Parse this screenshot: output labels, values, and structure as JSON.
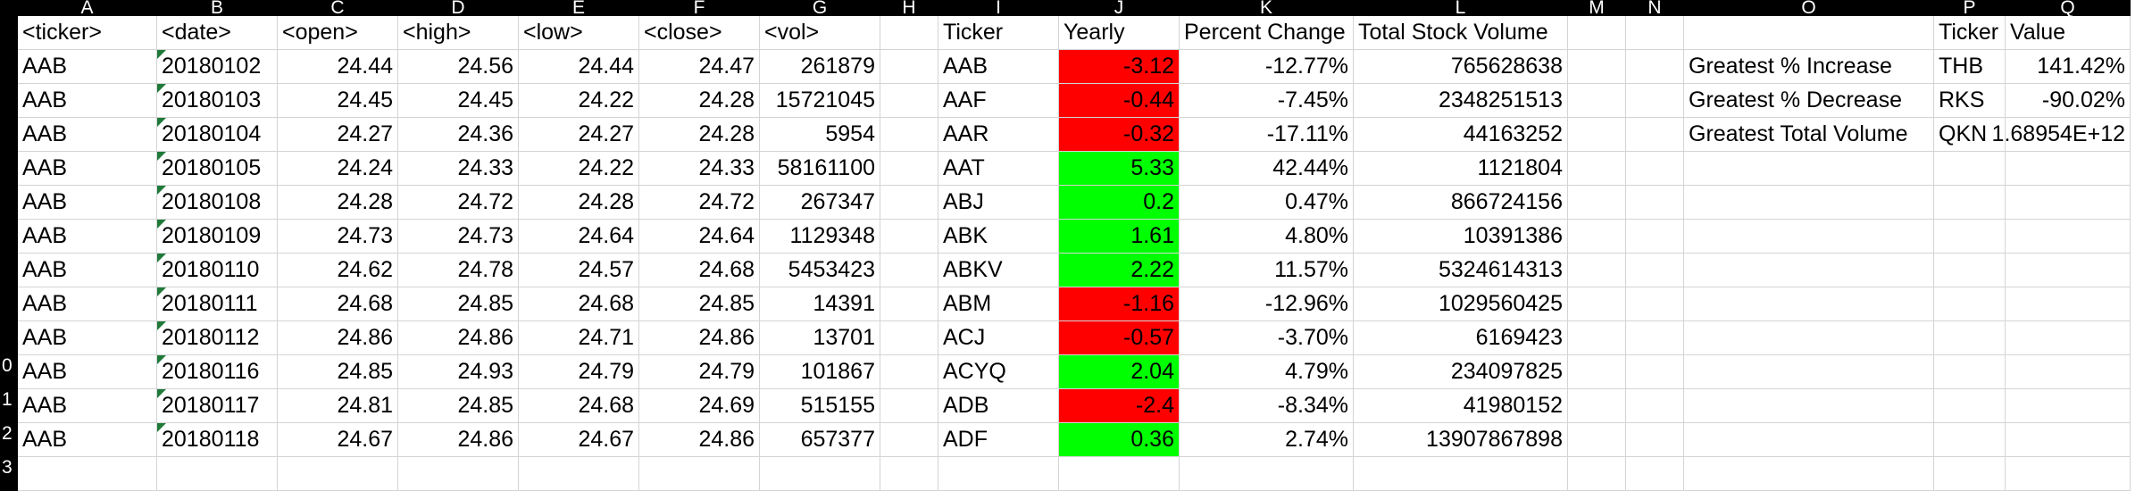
{
  "columns": [
    {
      "letter": "A"
    },
    {
      "letter": "B"
    },
    {
      "letter": "C"
    },
    {
      "letter": "D"
    },
    {
      "letter": "E"
    },
    {
      "letter": "F"
    },
    {
      "letter": "G"
    },
    {
      "letter": "H"
    },
    {
      "letter": "I"
    },
    {
      "letter": "J"
    },
    {
      "letter": "K"
    },
    {
      "letter": "L"
    },
    {
      "letter": "M"
    },
    {
      "letter": "N"
    },
    {
      "letter": "O"
    },
    {
      "letter": "P"
    },
    {
      "letter": "Q"
    }
  ],
  "rows": [
    {
      "num": ""
    },
    {
      "num": ""
    },
    {
      "num": ""
    },
    {
      "num": ""
    },
    {
      "num": ""
    },
    {
      "num": ""
    },
    {
      "num": ""
    },
    {
      "num": ""
    },
    {
      "num": ""
    },
    {
      "num": ""
    },
    {
      "num": "0"
    },
    {
      "num": "1"
    },
    {
      "num": "2"
    },
    {
      "num": "3"
    }
  ],
  "colors": {
    "positive": "#00ff00",
    "negative": "#ff0000"
  },
  "raw_headers": [
    "<ticker>",
    "<date>",
    "<open>",
    "<high>",
    "<low>",
    "<close>",
    "<vol>"
  ],
  "raw_data": [
    [
      "AAB",
      "20180102",
      "24.44",
      "24.56",
      "24.44",
      "24.47",
      "261879"
    ],
    [
      "AAB",
      "20180103",
      "24.45",
      "24.45",
      "24.22",
      "24.28",
      "15721045"
    ],
    [
      "AAB",
      "20180104",
      "24.27",
      "24.36",
      "24.27",
      "24.28",
      "5954"
    ],
    [
      "AAB",
      "20180105",
      "24.24",
      "24.33",
      "24.22",
      "24.33",
      "58161100"
    ],
    [
      "AAB",
      "20180108",
      "24.28",
      "24.72",
      "24.28",
      "24.72",
      "267347"
    ],
    [
      "AAB",
      "20180109",
      "24.73",
      "24.73",
      "24.64",
      "24.64",
      "1129348"
    ],
    [
      "AAB",
      "20180110",
      "24.62",
      "24.78",
      "24.57",
      "24.68",
      "5453423"
    ],
    [
      "AAB",
      "20180111",
      "24.68",
      "24.85",
      "24.68",
      "24.85",
      "14391"
    ],
    [
      "AAB",
      "20180112",
      "24.86",
      "24.86",
      "24.71",
      "24.86",
      "13701"
    ],
    [
      "AAB",
      "20180116",
      "24.85",
      "24.93",
      "24.79",
      "24.79",
      "101867"
    ],
    [
      "AAB",
      "20180117",
      "24.81",
      "24.85",
      "24.68",
      "24.69",
      "515155"
    ],
    [
      "AAB",
      "20180118",
      "24.67",
      "24.86",
      "24.67",
      "24.86",
      "657377"
    ]
  ],
  "summary_headers": [
    "Ticker",
    "Yearly",
    "Percent Change",
    "Total Stock Volume"
  ],
  "summary_data": [
    [
      "AAB",
      "-3.12",
      "-12.77%",
      "765628638"
    ],
    [
      "AAF",
      "-0.44",
      "-7.45%",
      "2348251513"
    ],
    [
      "AAR",
      "-0.32",
      "-17.11%",
      "44163252"
    ],
    [
      "AAT",
      "5.33",
      "42.44%",
      "1121804"
    ],
    [
      "ABJ",
      "0.2",
      "0.47%",
      "866724156"
    ],
    [
      "ABK",
      "1.61",
      "4.80%",
      "10391386"
    ],
    [
      "ABKV",
      "2.22",
      "11.57%",
      "5324614313"
    ],
    [
      "ABM",
      "-1.16",
      "-12.96%",
      "1029560425"
    ],
    [
      "ACJ",
      "-0.57",
      "-3.70%",
      "6169423"
    ],
    [
      "ACYQ",
      "2.04",
      "4.79%",
      "234097825"
    ],
    [
      "ADB",
      "-2.4",
      "-8.34%",
      "41980152"
    ],
    [
      "ADF",
      "0.36",
      "2.74%",
      "13907867898"
    ]
  ],
  "greatest_headers": [
    "Ticker",
    "Value"
  ],
  "greatest_data": [
    [
      "Greatest % Increase",
      "THB",
      "141.42%"
    ],
    [
      "Greatest % Decrease",
      "RKS",
      "-90.02%"
    ],
    [
      "Greatest Total Volume",
      "QKN",
      "1.68954E+12"
    ]
  ]
}
